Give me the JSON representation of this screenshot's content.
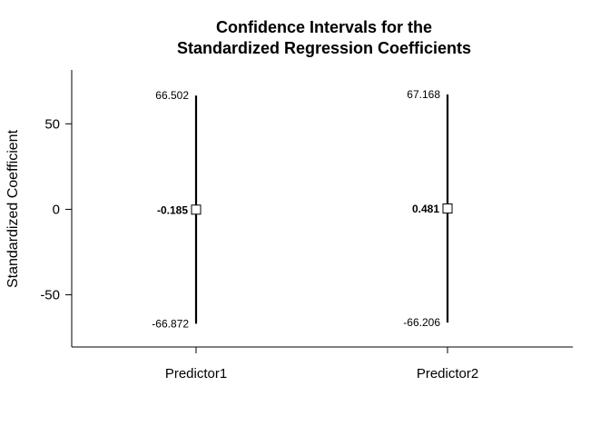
{
  "chart_data": {
    "type": "errorbar",
    "title": [
      "Confidence Intervals for the",
      "Standardized Regression Coefficients"
    ],
    "xlabel": "",
    "ylabel": "Standardized Coefficient",
    "categories": [
      "Predictor1",
      "Predictor2"
    ],
    "estimates": [
      -0.185,
      0.481
    ],
    "lower": [
      -66.872,
      -66.206
    ],
    "upper": [
      66.502,
      67.168
    ],
    "estimate_labels": [
      "-0.185",
      "0.481"
    ],
    "lower_labels": [
      "-66.872",
      "-66.206"
    ],
    "upper_labels": [
      "66.502",
      "67.168"
    ],
    "yticks": [
      -50,
      0,
      50
    ],
    "ytick_labels": [
      "-50",
      "0",
      "50"
    ],
    "ylim": [
      -80.5,
      81.5
    ],
    "grid": false,
    "legend": "none"
  }
}
